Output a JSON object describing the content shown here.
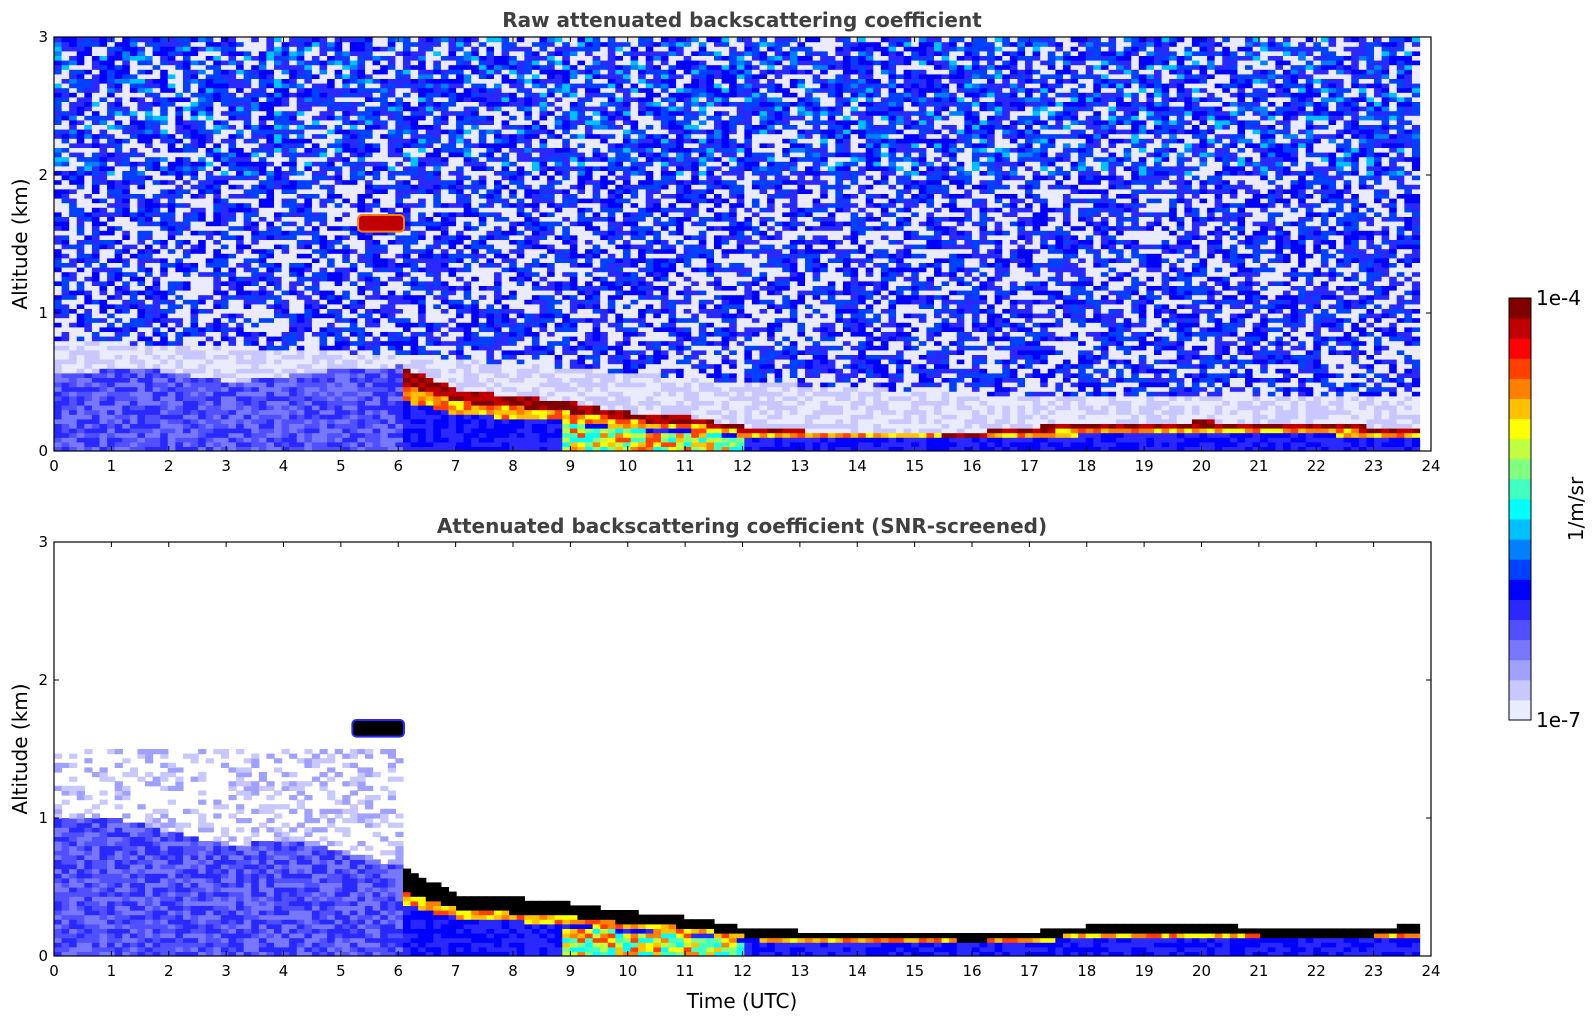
{
  "chart_data": [
    {
      "type": "heatmap",
      "title": "Raw attenuated backscattering coefficient",
      "xlabel": "",
      "ylabel": "Altitude (km)",
      "xlim": [
        0,
        24
      ],
      "ylim": [
        0,
        3
      ],
      "xticks": [
        "0",
        "1",
        "2",
        "3",
        "4",
        "5",
        "6",
        "7",
        "8",
        "9",
        "10",
        "11",
        "12",
        "13",
        "14",
        "15",
        "16",
        "17",
        "18",
        "19",
        "20",
        "21",
        "22",
        "23",
        "24"
      ],
      "yticks": [
        "0",
        "1",
        "2",
        "3"
      ],
      "features": {
        "surface_layer_top_km": [
          [
            0,
            0.55
          ],
          [
            1,
            0.6
          ],
          [
            2,
            0.58
          ],
          [
            3,
            0.5
          ],
          [
            4,
            0.55
          ],
          [
            5,
            0.6
          ],
          [
            6,
            0.62
          ],
          [
            6.1,
            0.6
          ],
          [
            7,
            0.45
          ],
          [
            8,
            0.4
          ],
          [
            9,
            0.35
          ],
          [
            10,
            0.28
          ],
          [
            11,
            0.25
          ],
          [
            12,
            0.18
          ],
          [
            13,
            0.15
          ],
          [
            14,
            0.15
          ],
          [
            15,
            0.15
          ],
          [
            16,
            0.14
          ],
          [
            17,
            0.18
          ],
          [
            18,
            0.2
          ],
          [
            19,
            0.2
          ],
          [
            20,
            0.22
          ],
          [
            21,
            0.2
          ],
          [
            22,
            0.2
          ],
          [
            23,
            0.18
          ],
          [
            23.8,
            0.18
          ]
        ],
        "elevated_layer": {
          "x_start": 5.3,
          "x_end": 6.1,
          "altitude_km": 1.65
        },
        "noise_region_start_km_by_time": [
          [
            0,
            0.8
          ],
          [
            6,
            0.7
          ],
          [
            12,
            0.5
          ],
          [
            17,
            0.4
          ],
          [
            24,
            0.4
          ]
        ]
      }
    },
    {
      "type": "heatmap",
      "title": "Attenuated backscattering coefficient (SNR-screened)",
      "xlabel": "Time (UTC)",
      "ylabel": "Altitude (km)",
      "xlim": [
        0,
        24
      ],
      "ylim": [
        0,
        3
      ],
      "xticks": [
        "0",
        "1",
        "2",
        "3",
        "4",
        "5",
        "6",
        "7",
        "8",
        "9",
        "10",
        "11",
        "12",
        "13",
        "14",
        "15",
        "16",
        "17",
        "18",
        "19",
        "20",
        "21",
        "22",
        "23",
        "24"
      ],
      "yticks": [
        "0",
        "1",
        "2",
        "3"
      ],
      "features": {
        "surface_layer_top_km": [
          [
            0,
            1.0
          ],
          [
            1,
            1.0
          ],
          [
            2,
            0.9
          ],
          [
            3,
            0.8
          ],
          [
            4,
            0.85
          ],
          [
            5,
            0.75
          ],
          [
            6,
            0.65
          ],
          [
            6.1,
            0.62
          ],
          [
            7,
            0.45
          ],
          [
            8,
            0.42
          ],
          [
            9,
            0.38
          ],
          [
            10,
            0.32
          ],
          [
            11,
            0.28
          ],
          [
            12,
            0.2
          ],
          [
            13,
            0.18
          ],
          [
            14,
            0.16
          ],
          [
            15,
            0.17
          ],
          [
            16,
            0.15
          ],
          [
            17,
            0.18
          ],
          [
            18,
            0.22
          ],
          [
            19,
            0.22
          ],
          [
            20,
            0.24
          ],
          [
            21,
            0.2
          ],
          [
            22,
            0.2
          ],
          [
            23,
            0.2
          ],
          [
            23.8,
            0.24
          ]
        ],
        "elevated_layer": {
          "x_start": 5.2,
          "x_end": 6.1,
          "altitude_km": 1.65
        }
      }
    }
  ],
  "colorbar": {
    "label": "1/m/sr",
    "max_label": "1e-4",
    "min_label": "1e-7",
    "colors": [
      "#ebebff",
      "#c8c8ff",
      "#a0a0ff",
      "#7878ff",
      "#5050ff",
      "#2828ff",
      "#0000ff",
      "#0040ff",
      "#0080ff",
      "#00c0ff",
      "#00ffff",
      "#40ffc0",
      "#80ff80",
      "#c0ff40",
      "#ffff00",
      "#ffc000",
      "#ff8000",
      "#ff4000",
      "#ff0000",
      "#c00000",
      "#800000"
    ]
  }
}
